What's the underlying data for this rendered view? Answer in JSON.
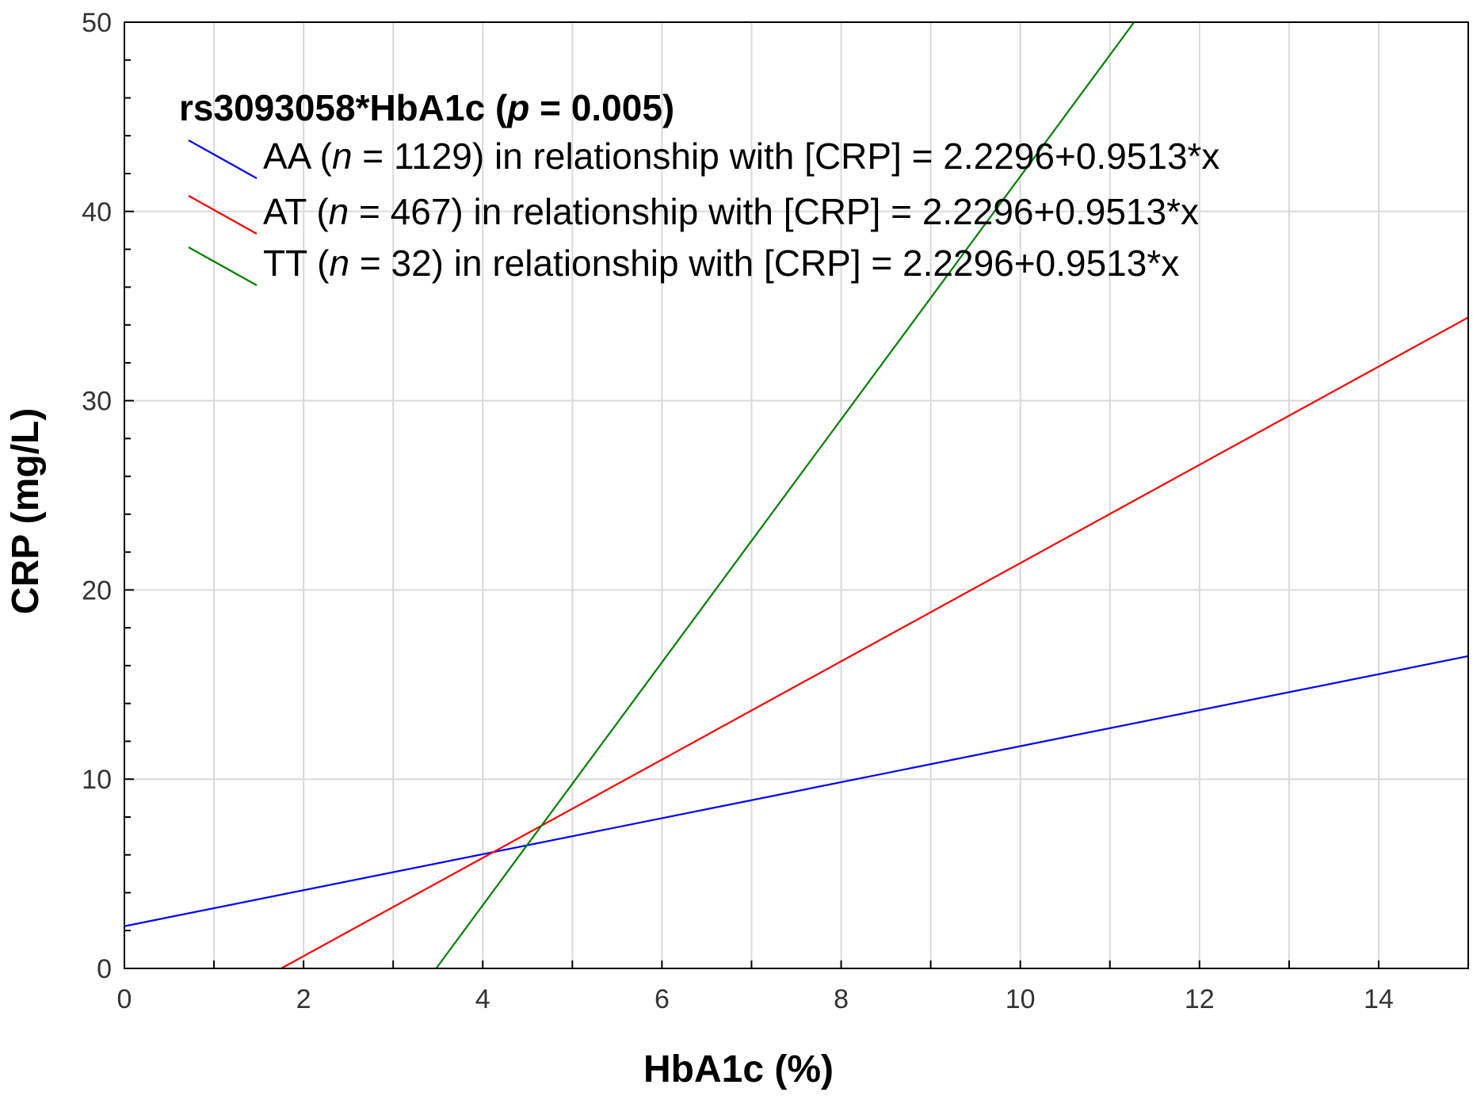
{
  "chart_data": {
    "type": "line",
    "title": "",
    "xlabel": "HbA1c (%)",
    "ylabel": "CRP (mg/L)",
    "xlim": [
      0,
      15
    ],
    "ylim": [
      0,
      50
    ],
    "x_ticks": [
      0,
      2,
      4,
      6,
      8,
      10,
      12,
      14
    ],
    "y_ticks": [
      0,
      10,
      20,
      30,
      40,
      50
    ],
    "grid": true,
    "legend": {
      "placement": "top-left",
      "title_prefix": "rs3093058*HbA1c (",
      "title_p": "p",
      "title_suffix": " = 0.005)"
    },
    "series": [
      {
        "name": "AA",
        "n": "1129",
        "color": "#0000ff",
        "label_prefix": "AA (",
        "label_n": "n",
        "label_suffix": " = 1129) in relationship with [CRP] = 2.2296+0.9513*x",
        "x": [
          0,
          15
        ],
        "y": [
          2.23,
          16.5
        ]
      },
      {
        "name": "AT",
        "n": "467",
        "color": "#ff0000",
        "label_prefix": "AT (",
        "label_n": "n",
        "label_suffix": " = 467) in relationship with [CRP] = 2.2296+0.9513*x",
        "x": [
          1.75,
          15
        ],
        "y": [
          0,
          34.4
        ]
      },
      {
        "name": "TT",
        "n": "32",
        "color": "#008000",
        "label_prefix": "TT (",
        "label_n": "n",
        "label_suffix": " = 32) in relationship with [CRP] = 2.2296+0.9513*x",
        "x": [
          3.48,
          11.27
        ],
        "y": [
          0,
          50
        ]
      }
    ]
  }
}
